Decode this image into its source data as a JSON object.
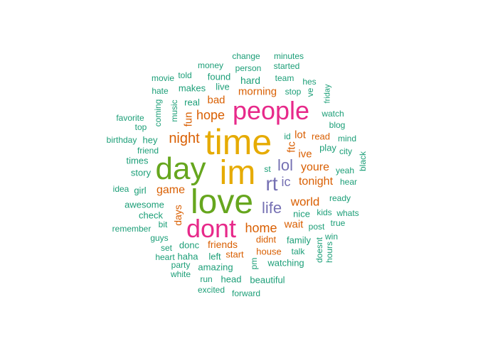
{
  "palette": {
    "teal": "#1b9e77",
    "orange": "#d95f02",
    "purple": "#7570b3",
    "pink": "#e7298a",
    "green": "#66a61e",
    "gold": "#e6ab02"
  },
  "words": [
    {
      "text": "time",
      "color": "gold"
    },
    {
      "text": "im",
      "color": "gold"
    },
    {
      "text": "love",
      "color": "green"
    },
    {
      "text": "day",
      "color": "green"
    },
    {
      "text": "dont",
      "color": "pink"
    },
    {
      "text": "people",
      "color": "pink"
    },
    {
      "text": "rt",
      "color": "purple"
    },
    {
      "text": "lol",
      "color": "purple"
    },
    {
      "text": "life",
      "color": "purple"
    },
    {
      "text": "ic",
      "color": "purple"
    },
    {
      "text": "night",
      "color": "orange"
    },
    {
      "text": "hope",
      "color": "orange"
    },
    {
      "text": "home",
      "color": "orange"
    },
    {
      "text": "world",
      "color": "orange"
    },
    {
      "text": "tonight",
      "color": "orange"
    },
    {
      "text": "game",
      "color": "orange"
    },
    {
      "text": "youre",
      "color": "orange"
    },
    {
      "text": "morning",
      "color": "orange"
    },
    {
      "text": "fun",
      "color": "orange"
    },
    {
      "text": "bad",
      "color": "orange"
    },
    {
      "text": "ive",
      "color": "orange"
    },
    {
      "text": "lot",
      "color": "orange"
    },
    {
      "text": "ftc",
      "color": "orange"
    },
    {
      "text": "days",
      "color": "orange"
    },
    {
      "text": "wait",
      "color": "orange"
    },
    {
      "text": "friends",
      "color": "orange"
    },
    {
      "text": "didnt",
      "color": "orange"
    },
    {
      "text": "house",
      "color": "orange"
    },
    {
      "text": "start",
      "color": "orange"
    },
    {
      "text": "read",
      "color": "orange"
    },
    {
      "text": "change",
      "color": "teal"
    },
    {
      "text": "minutes",
      "color": "teal"
    },
    {
      "text": "money",
      "color": "teal"
    },
    {
      "text": "person",
      "color": "teal"
    },
    {
      "text": "started",
      "color": "teal"
    },
    {
      "text": "movie",
      "color": "teal"
    },
    {
      "text": "told",
      "color": "teal"
    },
    {
      "text": "found",
      "color": "teal"
    },
    {
      "text": "team",
      "color": "teal"
    },
    {
      "text": "hard",
      "color": "teal"
    },
    {
      "text": "hes",
      "color": "teal"
    },
    {
      "text": "hate",
      "color": "teal"
    },
    {
      "text": "makes",
      "color": "teal"
    },
    {
      "text": "live",
      "color": "teal"
    },
    {
      "text": "stop",
      "color": "teal"
    },
    {
      "text": "ve",
      "color": "teal"
    },
    {
      "text": "friday",
      "color": "teal"
    },
    {
      "text": "coming",
      "color": "teal"
    },
    {
      "text": "music",
      "color": "teal"
    },
    {
      "text": "real",
      "color": "teal"
    },
    {
      "text": "blog",
      "color": "teal"
    },
    {
      "text": "favorite",
      "color": "teal"
    },
    {
      "text": "watch",
      "color": "teal"
    },
    {
      "text": "top",
      "color": "teal"
    },
    {
      "text": "birthday",
      "color": "teal"
    },
    {
      "text": "hey",
      "color": "teal"
    },
    {
      "text": "id",
      "color": "teal"
    },
    {
      "text": "mind",
      "color": "teal"
    },
    {
      "text": "friend",
      "color": "teal"
    },
    {
      "text": "play",
      "color": "teal"
    },
    {
      "text": "city",
      "color": "teal"
    },
    {
      "text": "black",
      "color": "teal"
    },
    {
      "text": "times",
      "color": "teal"
    },
    {
      "text": "story",
      "color": "teal"
    },
    {
      "text": "st",
      "color": "teal"
    },
    {
      "text": "yeah",
      "color": "teal"
    },
    {
      "text": "hear",
      "color": "teal"
    },
    {
      "text": "idea",
      "color": "teal"
    },
    {
      "text": "girl",
      "color": "teal"
    },
    {
      "text": "ready",
      "color": "teal"
    },
    {
      "text": "awesome",
      "color": "teal"
    },
    {
      "text": "kids",
      "color": "teal"
    },
    {
      "text": "whats",
      "color": "teal"
    },
    {
      "text": "check",
      "color": "teal"
    },
    {
      "text": "nice",
      "color": "teal"
    },
    {
      "text": "bit",
      "color": "teal"
    },
    {
      "text": "post",
      "color": "teal"
    },
    {
      "text": "true",
      "color": "teal"
    },
    {
      "text": "remember",
      "color": "teal"
    },
    {
      "text": "guys",
      "color": "teal"
    },
    {
      "text": "win",
      "color": "teal"
    },
    {
      "text": "family",
      "color": "teal"
    },
    {
      "text": "doesnt",
      "color": "teal"
    },
    {
      "text": "hours",
      "color": "teal"
    },
    {
      "text": "set",
      "color": "teal"
    },
    {
      "text": "donc",
      "color": "teal"
    },
    {
      "text": "heart",
      "color": "teal"
    },
    {
      "text": "haha",
      "color": "teal"
    },
    {
      "text": "left",
      "color": "teal"
    },
    {
      "text": "talk",
      "color": "teal"
    },
    {
      "text": "party",
      "color": "teal"
    },
    {
      "text": "pm",
      "color": "teal"
    },
    {
      "text": "watching",
      "color": "teal"
    },
    {
      "text": "amazing",
      "color": "teal"
    },
    {
      "text": "white",
      "color": "teal"
    },
    {
      "text": "run",
      "color": "teal"
    },
    {
      "text": "head",
      "color": "teal"
    },
    {
      "text": "beautiful",
      "color": "teal"
    },
    {
      "text": "excited",
      "color": "teal"
    },
    {
      "text": "forward",
      "color": "teal"
    }
  ]
}
